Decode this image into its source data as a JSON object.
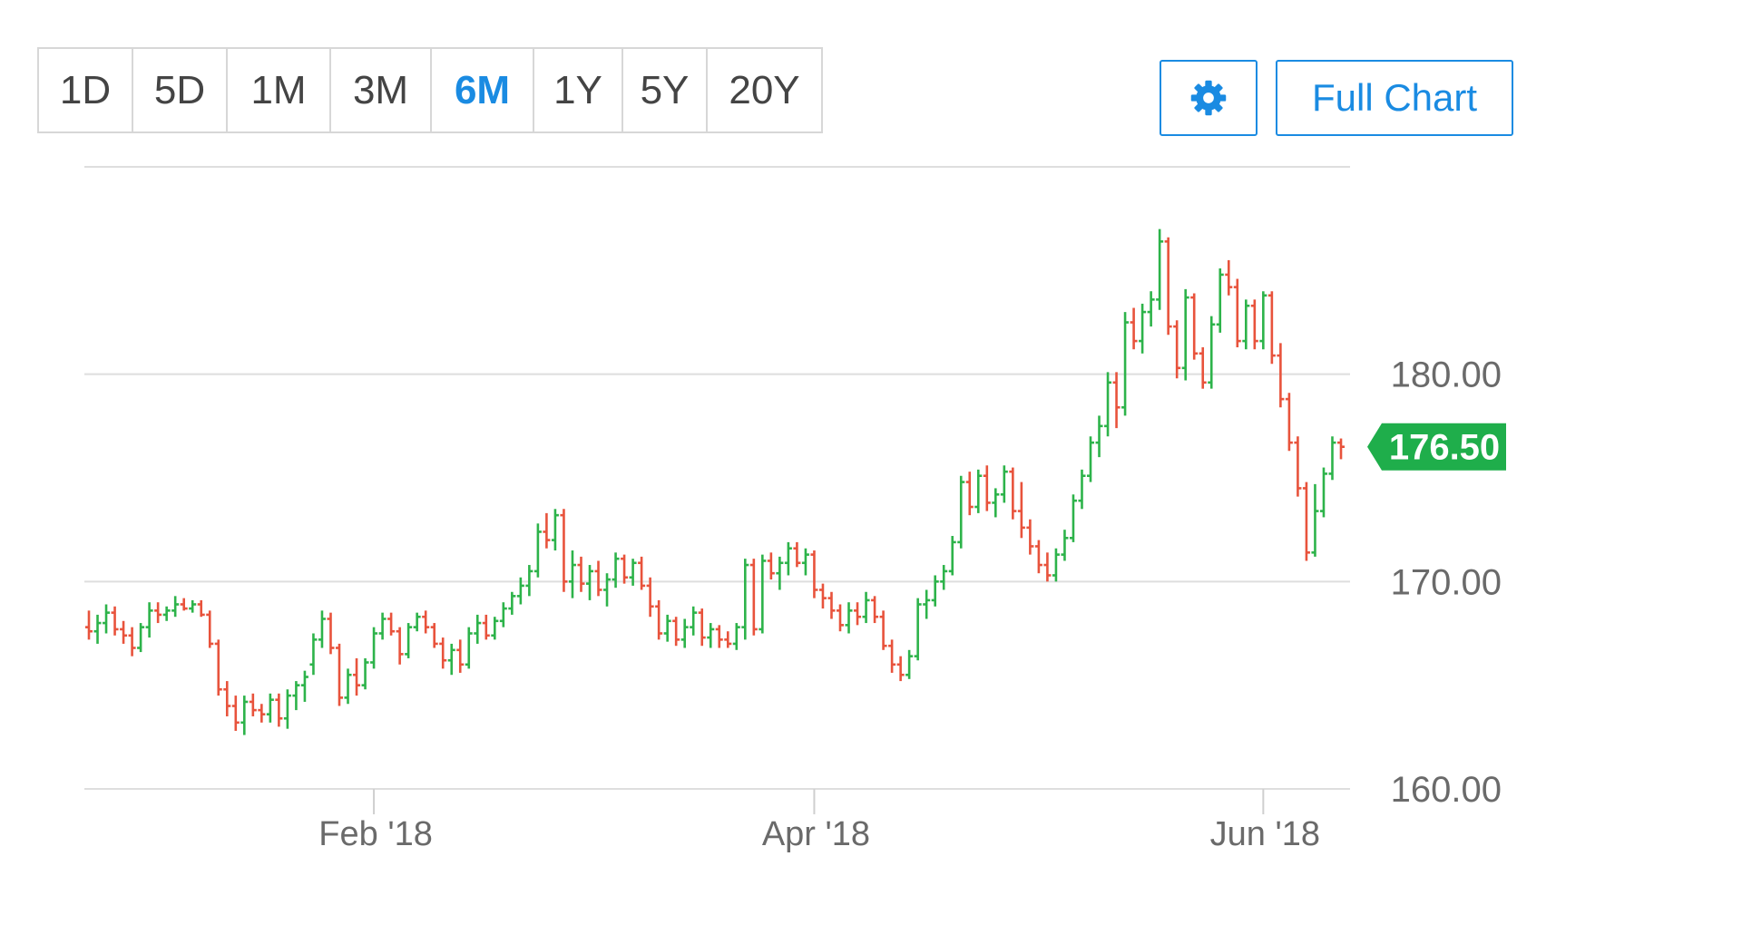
{
  "toolbar": {
    "ranges": [
      "1D",
      "5D",
      "1M",
      "3M",
      "6M",
      "1Y",
      "5Y",
      "20Y"
    ],
    "active_range": "6M",
    "settings_icon": "gear-icon",
    "full_chart_label": "Full Chart"
  },
  "colors": {
    "accent": "#1a8be2",
    "up": "#2db34a",
    "down": "#e8533c",
    "price_tag": "#1fae4b",
    "grid": "#dedede"
  },
  "chart_data": {
    "type": "ohlc",
    "current_price_label": "176.50",
    "current_price": 176.5,
    "ylim": [
      160,
      190
    ],
    "y_ticks": [
      "160.00",
      "170.00",
      "180.00"
    ],
    "y_tick_values": [
      160,
      170,
      180
    ],
    "x_ticks": [
      "Feb '18",
      "Apr '18",
      "Jun '18"
    ],
    "x_tick_index": [
      33,
      84,
      136
    ],
    "grid": true,
    "bars": [
      [
        167.8,
        168.6,
        167.2,
        167.6
      ],
      [
        167.6,
        168.4,
        167.0,
        168.0
      ],
      [
        168.0,
        168.9,
        167.5,
        168.5
      ],
      [
        168.5,
        168.8,
        167.4,
        167.7
      ],
      [
        167.7,
        168.1,
        167.0,
        167.4
      ],
      [
        167.4,
        167.8,
        166.4,
        166.8
      ],
      [
        166.8,
        168.0,
        166.6,
        167.8
      ],
      [
        167.8,
        169.0,
        167.3,
        168.6
      ],
      [
        168.6,
        169.0,
        168.0,
        168.4
      ],
      [
        168.4,
        168.8,
        168.1,
        168.6
      ],
      [
        168.6,
        169.3,
        168.3,
        168.9
      ],
      [
        168.9,
        169.2,
        168.6,
        168.7
      ],
      [
        168.7,
        169.1,
        168.5,
        168.9
      ],
      [
        168.9,
        169.1,
        168.3,
        168.4
      ],
      [
        168.4,
        168.6,
        166.8,
        167.0
      ],
      [
        167.0,
        167.2,
        164.5,
        164.8
      ],
      [
        164.8,
        165.2,
        163.5,
        164.0
      ],
      [
        164.0,
        164.5,
        162.8,
        163.2
      ],
      [
        163.2,
        164.5,
        162.6,
        164.2
      ],
      [
        164.2,
        164.6,
        163.5,
        163.8
      ],
      [
        163.8,
        164.1,
        163.2,
        163.6
      ],
      [
        163.6,
        164.6,
        163.2,
        164.3
      ],
      [
        164.3,
        164.6,
        163.0,
        163.4
      ],
      [
        163.4,
        164.8,
        162.9,
        164.5
      ],
      [
        164.5,
        165.2,
        163.8,
        165.0
      ],
      [
        165.0,
        165.7,
        164.2,
        165.4
      ],
      [
        166.0,
        167.5,
        165.5,
        167.2
      ],
      [
        167.2,
        168.6,
        166.8,
        168.2
      ],
      [
        168.2,
        168.5,
        166.5,
        166.8
      ],
      [
        166.8,
        167.0,
        164.0,
        164.4
      ],
      [
        164.4,
        165.8,
        164.1,
        165.5
      ],
      [
        165.5,
        166.3,
        164.5,
        165.0
      ],
      [
        165.0,
        166.3,
        164.8,
        166.1
      ],
      [
        166.1,
        167.8,
        165.8,
        167.5
      ],
      [
        167.5,
        168.5,
        167.2,
        168.2
      ],
      [
        168.2,
        168.5,
        167.4,
        167.6
      ],
      [
        167.6,
        167.8,
        166.0,
        166.5
      ],
      [
        166.5,
        168.0,
        166.3,
        167.8
      ],
      [
        167.8,
        168.5,
        167.6,
        168.3
      ],
      [
        168.3,
        168.6,
        167.5,
        167.8
      ],
      [
        167.8,
        168.0,
        166.8,
        167.0
      ],
      [
        167.0,
        167.3,
        165.8,
        166.2
      ],
      [
        166.2,
        167.0,
        165.5,
        166.7
      ],
      [
        166.7,
        167.2,
        165.6,
        166.0
      ],
      [
        166.0,
        167.8,
        165.8,
        167.5
      ],
      [
        167.5,
        168.4,
        167.0,
        168.0
      ],
      [
        168.0,
        168.4,
        167.2,
        167.4
      ],
      [
        167.4,
        168.3,
        167.2,
        168.1
      ],
      [
        168.1,
        169.0,
        167.8,
        168.7
      ],
      [
        168.7,
        169.5,
        168.4,
        169.3
      ],
      [
        169.3,
        170.2,
        168.9,
        169.8
      ],
      [
        169.8,
        170.8,
        169.3,
        170.5
      ],
      [
        170.5,
        172.8,
        170.2,
        172.4
      ],
      [
        172.4,
        173.3,
        171.6,
        172.0
      ],
      [
        172.0,
        173.5,
        171.5,
        173.2
      ],
      [
        173.2,
        173.5,
        169.5,
        170.0
      ],
      [
        170.0,
        171.5,
        169.2,
        170.8
      ],
      [
        170.8,
        171.2,
        169.5,
        169.9
      ],
      [
        169.9,
        170.8,
        169.1,
        170.5
      ],
      [
        170.5,
        171.0,
        169.3,
        169.6
      ],
      [
        169.6,
        170.4,
        168.8,
        170.1
      ],
      [
        170.1,
        171.4,
        169.7,
        171.1
      ],
      [
        171.1,
        171.3,
        169.9,
        170.2
      ],
      [
        170.2,
        171.1,
        169.8,
        170.9
      ],
      [
        170.9,
        171.2,
        169.6,
        169.8
      ],
      [
        169.8,
        170.2,
        168.3,
        168.8
      ],
      [
        168.8,
        169.1,
        167.2,
        167.5
      ],
      [
        167.5,
        168.4,
        167.1,
        168.1
      ],
      [
        168.1,
        168.3,
        166.9,
        167.2
      ],
      [
        167.2,
        168.2,
        166.8,
        167.8
      ],
      [
        167.8,
        168.8,
        167.4,
        168.5
      ],
      [
        168.5,
        168.7,
        166.9,
        167.3
      ],
      [
        167.3,
        168.0,
        166.8,
        167.7
      ],
      [
        167.7,
        167.9,
        166.8,
        167.2
      ],
      [
        167.2,
        167.6,
        166.8,
        167.0
      ],
      [
        167.0,
        168.0,
        166.7,
        167.8
      ],
      [
        167.8,
        171.1,
        167.2,
        170.8
      ],
      [
        170.8,
        171.1,
        167.4,
        167.7
      ],
      [
        167.7,
        171.3,
        167.5,
        171.0
      ],
      [
        171.0,
        171.4,
        170.1,
        170.4
      ],
      [
        170.4,
        171.2,
        169.6,
        170.9
      ],
      [
        170.9,
        171.9,
        170.3,
        171.6
      ],
      [
        171.6,
        171.9,
        170.7,
        170.9
      ],
      [
        170.9,
        171.6,
        170.3,
        171.3
      ],
      [
        171.3,
        171.5,
        169.2,
        169.6
      ],
      [
        169.6,
        169.9,
        168.7,
        169.2
      ],
      [
        169.2,
        169.5,
        168.2,
        168.6
      ],
      [
        168.6,
        168.9,
        167.6,
        167.9
      ],
      [
        167.9,
        169.0,
        167.5,
        168.6
      ],
      [
        168.6,
        169.0,
        167.9,
        168.3
      ],
      [
        168.3,
        169.5,
        168.0,
        169.1
      ],
      [
        169.1,
        169.3,
        168.0,
        168.3
      ],
      [
        168.3,
        168.6,
        166.7,
        166.9
      ],
      [
        166.9,
        167.2,
        165.6,
        166.0
      ],
      [
        166.0,
        166.4,
        165.2,
        165.5
      ],
      [
        165.5,
        166.7,
        165.3,
        166.4
      ],
      [
        166.4,
        169.2,
        166.2,
        168.9
      ],
      [
        168.9,
        169.6,
        168.2,
        169.1
      ],
      [
        169.1,
        170.3,
        168.8,
        170.0
      ],
      [
        170.0,
        170.8,
        169.6,
        170.5
      ],
      [
        170.5,
        172.2,
        170.3,
        171.9
      ],
      [
        171.9,
        175.1,
        171.6,
        174.8
      ],
      [
        174.8,
        175.3,
        173.2,
        173.6
      ],
      [
        173.6,
        175.4,
        173.3,
        175.1
      ],
      [
        175.1,
        175.6,
        173.4,
        173.8
      ],
      [
        173.8,
        174.5,
        173.1,
        174.2
      ],
      [
        174.2,
        175.6,
        173.8,
        175.3
      ],
      [
        175.3,
        175.5,
        173.0,
        173.4
      ],
      [
        173.4,
        174.8,
        172.1,
        172.6
      ],
      [
        172.6,
        173.0,
        171.3,
        171.7
      ],
      [
        171.7,
        172.0,
        170.4,
        170.8
      ],
      [
        170.8,
        171.4,
        170.0,
        170.3
      ],
      [
        170.3,
        171.6,
        170.0,
        171.3
      ],
      [
        171.3,
        172.5,
        171.0,
        172.1
      ],
      [
        172.1,
        174.2,
        171.9,
        173.9
      ],
      [
        173.9,
        175.4,
        173.5,
        175.1
      ],
      [
        175.1,
        177.0,
        174.8,
        176.7
      ],
      [
        176.7,
        178.0,
        176.0,
        177.5
      ],
      [
        177.5,
        180.1,
        177.0,
        179.6
      ],
      [
        179.6,
        180.1,
        177.4,
        178.4
      ],
      [
        178.4,
        183.0,
        178.0,
        182.5
      ],
      [
        182.5,
        183.2,
        181.2,
        181.6
      ],
      [
        181.6,
        183.4,
        181.0,
        183.0
      ],
      [
        183.0,
        184.0,
        182.3,
        183.6
      ],
      [
        183.6,
        187.0,
        183.1,
        186.4
      ],
      [
        186.4,
        186.6,
        181.9,
        182.3
      ],
      [
        182.3,
        182.6,
        179.8,
        180.3
      ],
      [
        180.3,
        184.1,
        179.7,
        183.7
      ],
      [
        183.7,
        183.9,
        180.7,
        181.0
      ],
      [
        181.0,
        181.3,
        179.3,
        179.6
      ],
      [
        179.6,
        182.8,
        179.3,
        182.4
      ],
      [
        182.4,
        185.1,
        182.0,
        184.8
      ],
      [
        184.8,
        185.5,
        183.8,
        184.2
      ],
      [
        184.2,
        184.6,
        181.3,
        181.6
      ],
      [
        181.6,
        183.6,
        181.2,
        183.3
      ],
      [
        183.3,
        183.6,
        181.2,
        181.6
      ],
      [
        181.6,
        184.0,
        181.2,
        183.8
      ],
      [
        183.8,
        184.0,
        180.5,
        180.9
      ],
      [
        180.9,
        181.5,
        178.4,
        178.8
      ],
      [
        178.8,
        179.1,
        176.3,
        176.7
      ],
      [
        176.7,
        177.0,
        174.1,
        174.5
      ],
      [
        174.5,
        174.8,
        171.0,
        171.4
      ],
      [
        171.4,
        174.7,
        171.2,
        173.4
      ],
      [
        173.4,
        175.5,
        173.1,
        175.2
      ],
      [
        175.2,
        177.0,
        174.9,
        176.7
      ],
      [
        176.7,
        176.9,
        175.9,
        176.5
      ]
    ]
  }
}
